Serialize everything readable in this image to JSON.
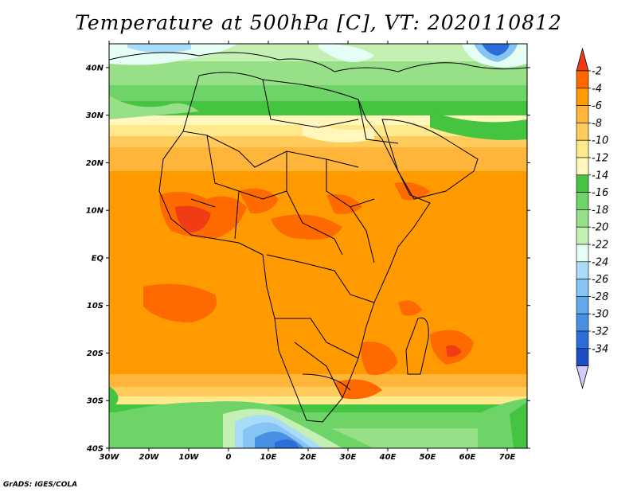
{
  "title": "Temperature at 500hPa [C], VT: 2020110812",
  "credit": "GrADS: IGES/COLA",
  "map": {
    "lat_labels": [
      "40N",
      "30N",
      "20N",
      "10N",
      "EQ",
      "10S",
      "20S",
      "30S",
      "40S"
    ],
    "lon_labels": [
      "30W",
      "20W",
      "10W",
      "0",
      "10E",
      "20E",
      "30E",
      "40E",
      "50E",
      "60E",
      "70E"
    ]
  },
  "colorbar": {
    "labels": [
      "-2",
      "-4",
      "-6",
      "-8",
      "-10",
      "-12",
      "-14",
      "-16",
      "-18",
      "-20",
      "-22",
      "-24",
      "-26",
      "-28",
      "-30",
      "-32",
      "-34"
    ],
    "colors": [
      "#f03c14",
      "#ff6a00",
      "#ff9a00",
      "#ffb53a",
      "#ffcc5c",
      "#ffe98c",
      "#fff7bb",
      "#44c440",
      "#6ed468",
      "#98e088",
      "#c4f0b4",
      "#e6fff6",
      "#a8dcf8",
      "#86c4f4",
      "#62a8ee",
      "#4890e4",
      "#2c6ed8",
      "#1e4ec6",
      "#0c1e7c"
    ]
  }
}
